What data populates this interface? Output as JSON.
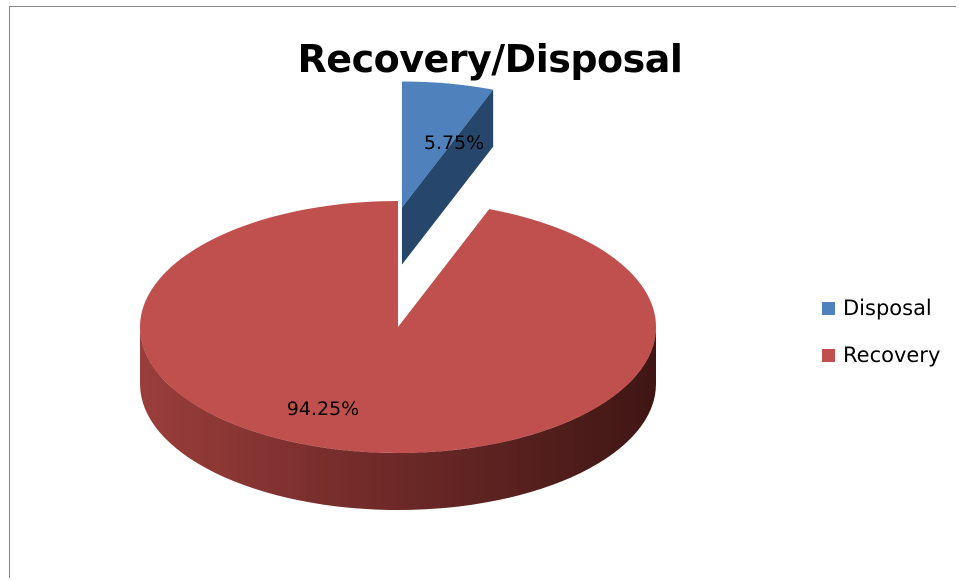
{
  "chart_data": {
    "type": "pie",
    "title": "Recovery/Disposal",
    "slices": [
      {
        "name": "Disposal",
        "value": 5.75,
        "label": "5.75%",
        "color": "#4F81BD"
      },
      {
        "name": "Recovery",
        "value": 94.25,
        "label": "94.25%",
        "color": "#C0504D"
      }
    ],
    "style": "3d-exploded",
    "legend_position": "right"
  }
}
